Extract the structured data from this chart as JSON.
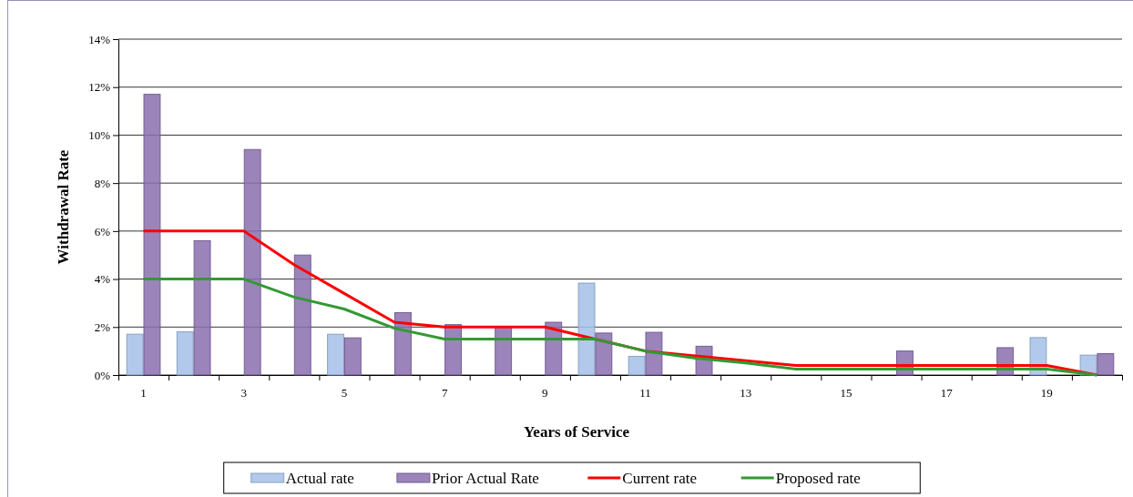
{
  "chart_data": {
    "type": "bar",
    "xlabel": "Years of Service",
    "ylabel": "Withdrawal Rate",
    "categories": [
      "1",
      null,
      "3",
      null,
      "5",
      null,
      "7",
      null,
      "9",
      null,
      "11",
      null,
      "13",
      null,
      "15",
      null,
      "17",
      null,
      "19",
      null
    ],
    "series": [
      {
        "name": "Actual rate",
        "color": "#a4bfe8",
        "values": [
          1.7,
          1.8,
          0,
          0,
          1.7,
          0,
          0,
          0,
          0,
          3.83,
          0.78,
          0,
          0,
          0,
          0,
          0,
          0,
          0,
          1.56,
          0.83
        ]
      },
      {
        "name": "Prior Actual Rate",
        "color": "#8a6fae",
        "values": [
          11.7,
          5.6,
          9.4,
          5.0,
          1.55,
          2.6,
          2.1,
          2.0,
          2.2,
          1.75,
          1.78,
          1.2,
          0,
          0,
          0,
          1.0,
          0,
          1.14,
          0,
          0.89
        ]
      },
      {
        "name": "Current rate",
        "type": "line",
        "color": "#ff0000",
        "values": [
          6,
          6,
          6,
          4.6,
          3.4,
          2.2,
          2.0,
          2.0,
          2.0,
          1.5,
          1.0,
          0.8,
          0.6,
          0.4,
          0.4,
          0.4,
          0.4,
          0.4,
          0.4,
          0
        ]
      },
      {
        "name": "Proposed rate",
        "type": "line",
        "color": "#339933",
        "values": [
          4,
          4,
          4,
          3.25,
          2.75,
          1.95,
          1.5,
          1.5,
          1.5,
          1.5,
          1.0,
          0.7,
          0.5,
          0.25,
          0.25,
          0.25,
          0.25,
          0.25,
          0.25,
          0
        ]
      }
    ],
    "ylim": [
      0,
      14
    ],
    "yticks": [
      {
        "value": 0,
        "label": "0%"
      },
      {
        "value": 2,
        "label": "2%"
      },
      {
        "value": 4,
        "label": "4%"
      },
      {
        "value": 6,
        "label": "6%"
      },
      {
        "value": 8,
        "label": "8%"
      },
      {
        "value": 10,
        "label": "10%"
      },
      {
        "value": 12,
        "label": "12%"
      },
      {
        "value": 14,
        "label": "14%"
      }
    ],
    "grid": "y",
    "legend": "bottom",
    "marker": "none",
    "line_style": "solid"
  }
}
